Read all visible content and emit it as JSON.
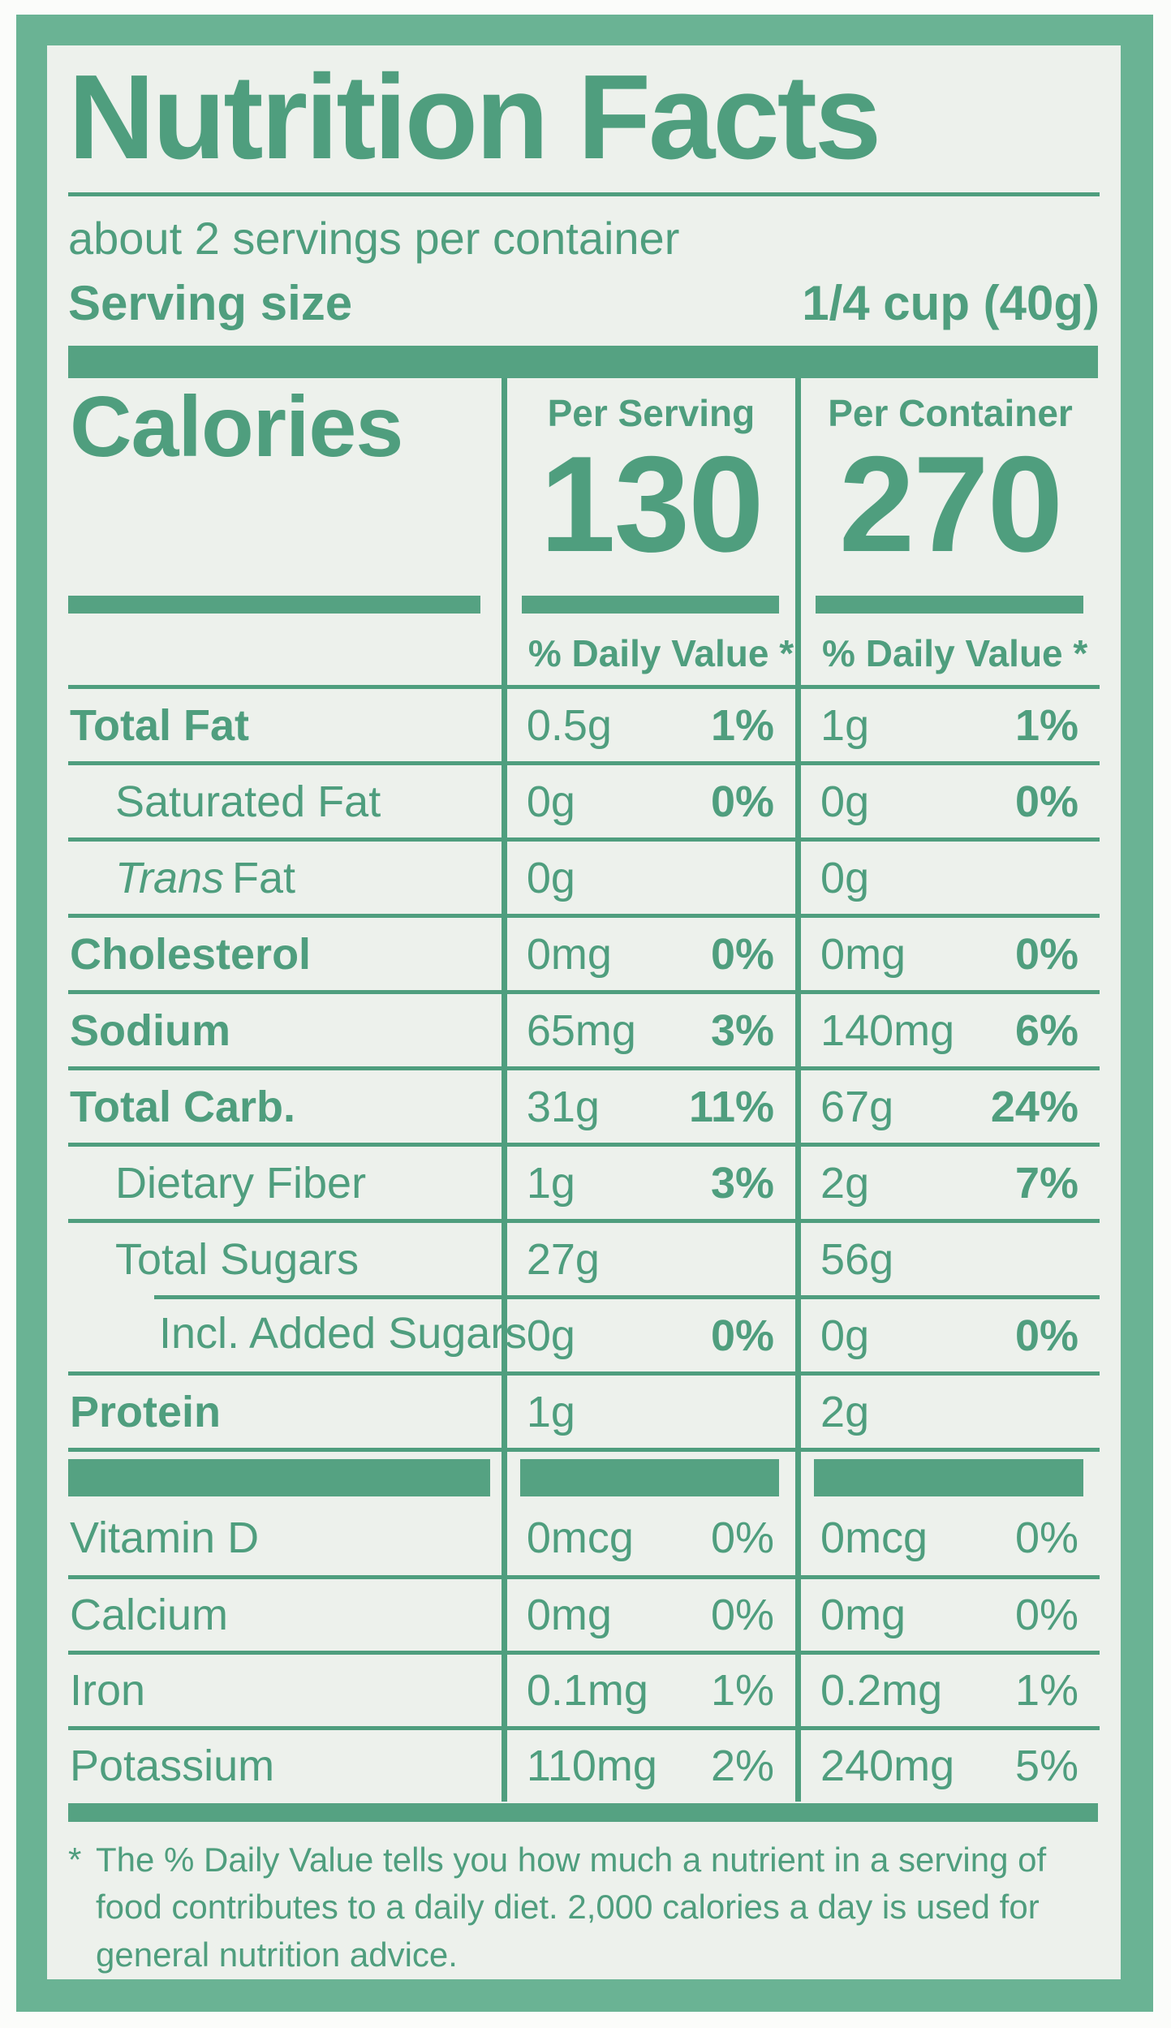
{
  "title": "Nutrition Facts",
  "servings_per_container": "about 2 servings per container",
  "serving_size": {
    "label": "Serving size",
    "value": "1/4 cup (40g)"
  },
  "calories": {
    "label": "Calories",
    "serving_header": "Per Serving",
    "serving_value": "130",
    "container_header": "Per Container",
    "container_value": "270",
    "daily_value_header": "% Daily Value *"
  },
  "nutrients": [
    {
      "label": "Total Fat",
      "serving_amount": "0.5g",
      "serving_dv": "1%",
      "container_amount": "1g",
      "container_dv": "1%"
    },
    {
      "label": "Saturated Fat",
      "serving_amount": "0g",
      "serving_dv": "0%",
      "container_amount": "0g",
      "container_dv": "0%"
    },
    {
      "label_italic": "Trans",
      "label_rest": "Fat",
      "serving_amount": "0g",
      "serving_dv": "",
      "container_amount": "0g",
      "container_dv": ""
    },
    {
      "label": "Cholesterol",
      "serving_amount": "0mg",
      "serving_dv": "0%",
      "container_amount": "0mg",
      "container_dv": "0%"
    },
    {
      "label": "Sodium",
      "serving_amount": "65mg",
      "serving_dv": "3%",
      "container_amount": "140mg",
      "container_dv": "6%"
    },
    {
      "label": "Total Carb.",
      "serving_amount": "31g",
      "serving_dv": "11%",
      "container_amount": "67g",
      "container_dv": "24%"
    },
    {
      "label": "Dietary Fiber",
      "serving_amount": "1g",
      "serving_dv": "3%",
      "container_amount": "2g",
      "container_dv": "7%"
    },
    {
      "label": "Total Sugars",
      "serving_amount": "27g",
      "serving_dv": "",
      "container_amount": "56g",
      "container_dv": ""
    },
    {
      "label": "Incl. Added Sugars",
      "serving_amount": "0g",
      "serving_dv": "0%",
      "container_amount": "0g",
      "container_dv": "0%"
    },
    {
      "label": "Protein",
      "serving_amount": "1g",
      "serving_dv": "",
      "container_amount": "2g",
      "container_dv": ""
    }
  ],
  "vitamins": [
    {
      "label": "Vitamin D",
      "serving_amount": "0mcg",
      "serving_dv": "0%",
      "container_amount": "0mcg",
      "container_dv": "0%"
    },
    {
      "label": "Calcium",
      "serving_amount": "0mg",
      "serving_dv": "0%",
      "container_amount": "0mg",
      "container_dv": "0%"
    },
    {
      "label": "Iron",
      "serving_amount": "0.1mg",
      "serving_dv": "1%",
      "container_amount": "0.2mg",
      "container_dv": "1%"
    },
    {
      "label": "Potassium",
      "serving_amount": "110mg",
      "serving_dv": "2%",
      "container_amount": "240mg",
      "container_dv": "5%"
    }
  ],
  "footnote": {
    "marker": "*",
    "text": "The % Daily Value tells you how much a nutrient in a serving of food contributes to a daily diet. 2,000 calories a day is used for general nutrition advice."
  },
  "colors": {
    "ink": "#4f9e7e",
    "frame": "#6ab394",
    "background": "#edf1ec",
    "bar": "#55a282"
  }
}
